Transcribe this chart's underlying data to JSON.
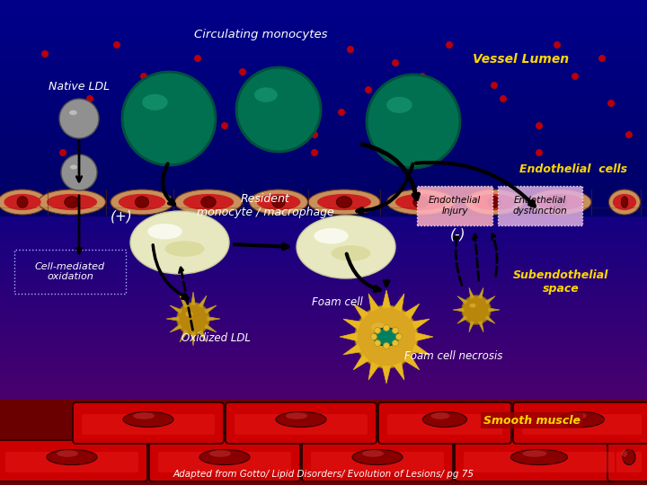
{
  "circulating_monocytes_text": "Circulating monocytes",
  "native_ldl_text": "Native LDL",
  "vessel_lumen_text": "Vessel Lumen",
  "endothelial_cells_text": "Endothelial  cells",
  "resident_monocyte_text": "Resident\nmonocyte / macrophage",
  "endothelial_injury_text": "Endothelial\nInjury",
  "endothelial_dysfunction_text": "Endothelial\ndysfunction",
  "cell_mediated_text": "Cell-mediated\noxidation",
  "oxidized_ldl_text": "Oxidized LDL",
  "foam_cell_text": "Foam cell",
  "foam_cell_necrosis_text": "Foam cell necrosis",
  "subendothelial_text": "Subendothelial\nspace",
  "smooth_muscle_text": "Smooth muscle",
  "adapted_text": "Adapted from Gotto/ Lipid Disorders/ Evolution of Lesions/ pg 75",
  "plus_text": "(+)",
  "minus_text": "(-)"
}
